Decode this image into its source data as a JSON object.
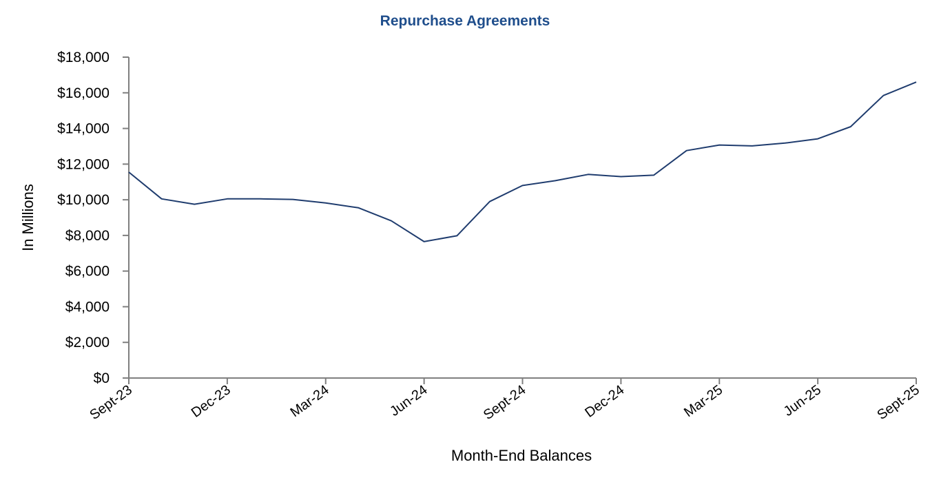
{
  "chart_data": {
    "type": "line",
    "title": "Repurchase Agreements",
    "xlabel": "Month-End Balances",
    "ylabel": "In Millions",
    "ylim": [
      0,
      18000
    ],
    "yticks": [
      0,
      2000,
      4000,
      6000,
      8000,
      10000,
      12000,
      14000,
      16000,
      18000
    ],
    "ytick_labels": [
      "$0",
      "$2,000",
      "$4,000",
      "$6,000",
      "$8,000",
      "$10,000",
      "$12,000",
      "$14,000",
      "$16,000",
      "$18,000"
    ],
    "x_labeled_ticks": [
      "Sept-23",
      "Dec-23",
      "Mar-24",
      "Jun-24",
      "Sept-24",
      "Dec-24",
      "Mar-25",
      "Jun-25",
      "Sept-25"
    ],
    "x": [
      "Sept-23",
      "Oct-23",
      "Nov-23",
      "Dec-23",
      "Jan-24",
      "Feb-24",
      "Mar-24",
      "Apr-24",
      "May-24",
      "Jun-24",
      "Jul-24",
      "Aug-24",
      "Sept-24",
      "Oct-24",
      "Nov-24",
      "Dec-24",
      "Jan-25",
      "Feb-25",
      "Mar-25",
      "Apr-25",
      "May-25",
      "Jun-25",
      "Jul-25",
      "Aug-25",
      "Sept-25"
    ],
    "series": [
      {
        "values": [
          11550,
          10050,
          9750,
          10050,
          10050,
          10020,
          9820,
          9550,
          8820,
          7650,
          7980,
          9900,
          10800,
          11070,
          11420,
          11300,
          11380,
          12760,
          13070,
          13020,
          13180,
          13420,
          14100,
          15850,
          16600
        ]
      }
    ],
    "grid": false,
    "legend": "none",
    "colors": {
      "line": "#1f3c6e",
      "title": "#1f4e8c",
      "axis": "#7f7f7f"
    }
  }
}
